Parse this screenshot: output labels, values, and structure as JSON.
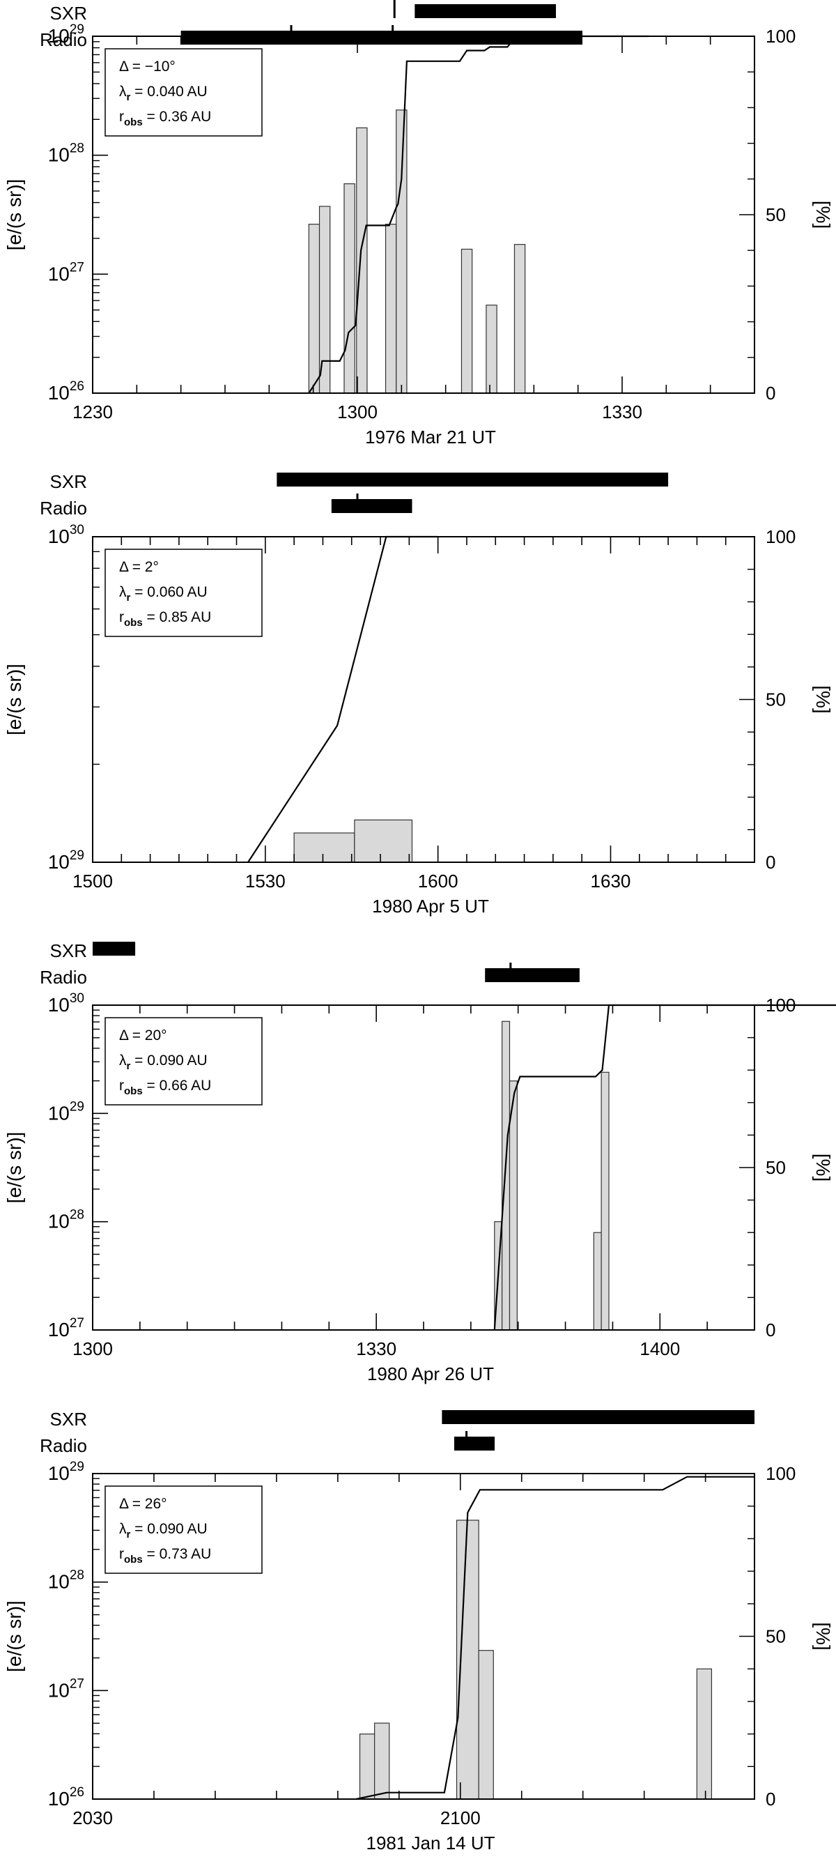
{
  "chart_data": [
    {
      "type": "bar",
      "event": "1976 Mar 21 UT",
      "xlabel": "1976 Mar 21 UT",
      "ylabel": "[e/(s sr)]",
      "ylabel_right": "[%]",
      "yscale": "log",
      "ylim": [
        1e+26,
        1e+29
      ],
      "y_ticks": [
        {
          "b": "10",
          "e": "26",
          "v": 26
        },
        {
          "b": "10",
          "e": "27",
          "v": 27
        },
        {
          "b": "10",
          "e": "28",
          "v": 28
        },
        {
          "b": "10",
          "e": "29",
          "v": 29
        }
      ],
      "y2lim": [
        0,
        100
      ],
      "y2_ticks": [
        0,
        50,
        100
      ],
      "x_ticks": [
        "1230",
        "1300",
        "1330"
      ],
      "legend": {
        "position": "top-left",
        "lines": [
          {
            "pre": "Δ = −10°"
          },
          {
            "pre": "λ",
            "sub": "r",
            "post": " = 0.040 AU"
          },
          {
            "pre": "r",
            "sub": "obs",
            "post": " = 0.36 AU"
          }
        ]
      },
      "bars_log10": [
        {
          "x0": 1254.5,
          "x1": 1255.7,
          "v": 27.42
        },
        {
          "x0": 1255.7,
          "x1": 1256.9,
          "v": 27.57
        },
        {
          "x0": 1258.5,
          "x1": 1259.7,
          "v": 27.76
        },
        {
          "x0": 1259.9,
          "x1": 1301.1,
          "v": 28.23
        },
        {
          "x0": 1303.2,
          "x1": 1304.4,
          "v": 27.42
        },
        {
          "x0": 1304.4,
          "x1": 1305.6,
          "v": 28.38
        },
        {
          "x0": 1311.8,
          "x1": 1313.0,
          "v": 27.21
        },
        {
          "x0": 1314.6,
          "x1": 1315.8,
          "v": 26.74
        },
        {
          "x0": 1317.8,
          "x1": 1319.0,
          "v": 27.25
        }
      ],
      "cumulative_percent": [
        [
          1254.5,
          0
        ],
        [
          1255.8,
          5
        ],
        [
          1256.0,
          9
        ],
        [
          1258.0,
          9
        ],
        [
          1258.6,
          12
        ],
        [
          1259.0,
          17
        ],
        [
          1259.8,
          19
        ],
        [
          1300.4,
          40
        ],
        [
          1301.0,
          47
        ],
        [
          1303.6,
          47
        ],
        [
          1304.4,
          52
        ],
        [
          1304.6,
          53
        ],
        [
          1305.0,
          60
        ],
        [
          1305.6,
          93
        ],
        [
          1311.6,
          93
        ],
        [
          1312.4,
          96
        ],
        [
          1314.4,
          96
        ],
        [
          1315.0,
          97
        ],
        [
          1317.0,
          97
        ],
        [
          1318.0,
          100
        ],
        [
          1333.0,
          100
        ]
      ],
      "sxr_bars": [
        [
          1306.5,
          1322.5
        ]
      ],
      "radio_bars": [
        [
          1240.0,
          1325.5
        ]
      ],
      "sxr_ticks": [
        1304.2
      ],
      "radio_ticks": [
        1252.5,
        1304.0
      ]
    },
    {
      "type": "bar",
      "event": "1980 Apr  5 UT",
      "xlabel": "1980 Apr  5 UT",
      "ylabel": "[e/(s sr)]",
      "ylabel_right": "[%]",
      "yscale": "log",
      "ylim": [
        1e+29,
        1e+30
      ],
      "y_ticks": [
        {
          "b": "10",
          "e": "29",
          "v": 29
        },
        {
          "b": "10",
          "e": "30",
          "v": 30
        }
      ],
      "y2lim": [
        0,
        100
      ],
      "y2_ticks": [
        0,
        50,
        100
      ],
      "x_ticks": [
        "1500",
        "1530",
        "1600",
        "1630"
      ],
      "legend": {
        "position": "top-left",
        "lines": [
          {
            "pre": "Δ = 2°"
          },
          {
            "pre": "λ",
            "sub": "r",
            "post": " = 0.060 AU"
          },
          {
            "pre": "r",
            "sub": "obs",
            "post": " = 0.85 AU"
          }
        ]
      },
      "bars_log10": [
        {
          "x0": 1535.0,
          "x1": 1545.5,
          "v": 29.09
        },
        {
          "x0": 1545.5,
          "x1": 1555.5,
          "v": 29.13
        }
      ],
      "cumulative_percent": [
        [
          1527.0,
          0
        ],
        [
          1542.5,
          42
        ],
        [
          1551.0,
          100
        ],
        [
          1600.0,
          100
        ]
      ],
      "sxr_bars": [
        [
          1532.0,
          1640.0
        ]
      ],
      "radio_bars": [
        [
          1541.5,
          1555.5
        ]
      ],
      "sxr_ticks": [],
      "radio_ticks": [
        1546.0
      ]
    },
    {
      "type": "bar",
      "event": "1980 Apr 26 UT",
      "xlabel": "1980 Apr 26 UT",
      "ylabel": "[e/(s sr)]",
      "ylabel_right": "[%]",
      "yscale": "log",
      "ylim": [
        1e+27,
        1e+30
      ],
      "y_ticks": [
        {
          "b": "10",
          "e": "27",
          "v": 27
        },
        {
          "b": "10",
          "e": "28",
          "v": 28
        },
        {
          "b": "10",
          "e": "29",
          "v": 29
        },
        {
          "b": "10",
          "e": "30",
          "v": 30
        }
      ],
      "y2lim": [
        0,
        100
      ],
      "y2_ticks": [
        0,
        50,
        100
      ],
      "x_ticks": [
        "1300",
        "1330",
        "1400"
      ],
      "legend": {
        "position": "top-left",
        "lines": [
          {
            "pre": "Δ = 20°"
          },
          {
            "pre": "λ",
            "sub": "r",
            "post": " = 0.090 AU"
          },
          {
            "pre": "r",
            "sub": "obs",
            "post": " = 0.66 AU"
          }
        ]
      },
      "bars_log10": [
        {
          "x0": 1342.5,
          "x1": 1343.3,
          "v": 28.0
        },
        {
          "x0": 1343.3,
          "x1": 1344.1,
          "v": 29.85
        },
        {
          "x0": 1344.1,
          "x1": 1344.9,
          "v": 29.3
        },
        {
          "x0": 1353.0,
          "x1": 1353.8,
          "v": 27.9
        },
        {
          "x0": 1353.8,
          "x1": 1354.6,
          "v": 29.38
        }
      ],
      "cumulative_percent": [
        [
          1342.5,
          0
        ],
        [
          1343.2,
          30
        ],
        [
          1343.9,
          60
        ],
        [
          1344.6,
          73
        ],
        [
          1345.2,
          78
        ],
        [
          1353.2,
          78
        ],
        [
          1353.9,
          80
        ],
        [
          1354.6,
          100
        ],
        [
          1420.0,
          100
        ]
      ],
      "sxr_bars": [
        [
          1300.0,
          1304.5
        ]
      ],
      "radio_bars": [
        [
          1341.5,
          1351.5
        ]
      ],
      "sxr_ticks": [],
      "radio_ticks": [
        1344.2
      ]
    },
    {
      "type": "bar",
      "event": "1981 Jan 14 UT",
      "xlabel": "1981 Jan 14 UT",
      "ylabel": "[e/(s sr)]",
      "ylabel_right": "[%]",
      "yscale": "log",
      "ylim": [
        1e+26,
        1e+29
      ],
      "y_ticks": [
        {
          "b": "10",
          "e": "26",
          "v": 26
        },
        {
          "b": "10",
          "e": "27",
          "v": 27
        },
        {
          "b": "10",
          "e": "28",
          "v": 28
        },
        {
          "b": "10",
          "e": "29",
          "v": 29
        }
      ],
      "y2lim": [
        0,
        100
      ],
      "y2_ticks": [
        0,
        50,
        100
      ],
      "x_ticks": [
        "2030",
        "2100"
      ],
      "legend": {
        "position": "top-left",
        "lines": [
          {
            "pre": "Δ = 26°"
          },
          {
            "pre": "λ",
            "sub": "r",
            "post": " = 0.090 AU"
          },
          {
            "pre": "r",
            "sub": "obs",
            "post": " = 0.73 AU"
          }
        ]
      },
      "bars_log10": [
        {
          "x0": 2051.8,
          "x1": 2053.0,
          "v": 26.6
        },
        {
          "x0": 2053.0,
          "x1": 2054.2,
          "v": 26.7
        },
        {
          "x0": 2059.7,
          "x1": 2101.5,
          "v": 28.57
        },
        {
          "x0": 2101.5,
          "x1": 2102.7,
          "v": 27.37
        },
        {
          "x0": 2119.3,
          "x1": 2120.5,
          "v": 27.2
        }
      ],
      "cumulative_percent": [
        [
          2051.5,
          0
        ],
        [
          2054.0,
          2
        ],
        [
          2058.7,
          2
        ],
        [
          2059.8,
          25
        ],
        [
          2100.6,
          88
        ],
        [
          2101.6,
          95
        ],
        [
          2116.5,
          95
        ],
        [
          2118.5,
          99
        ],
        [
          2124.0,
          99
        ]
      ],
      "sxr_bars": [
        [
          2058.5,
          2124.0
        ]
      ],
      "radio_bars": [
        [
          2059.5,
          2102.8
        ]
      ],
      "sxr_ticks": [],
      "radio_ticks": [
        2100.5
      ]
    }
  ],
  "labels": {
    "sxr": "SXR",
    "radio": "Radio"
  }
}
